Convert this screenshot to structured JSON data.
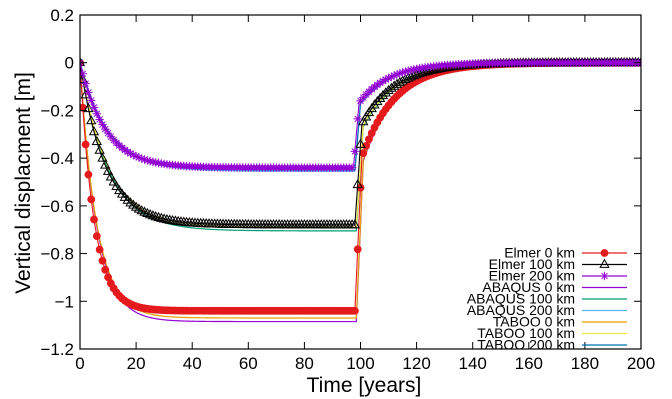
{
  "chart_data": {
    "type": "line",
    "xlabel": "Time [years]",
    "ylabel": "Vertical displacment [m]",
    "xlim": [
      0,
      200
    ],
    "ylim": [
      -1.2,
      0.2
    ],
    "xticks": [
      0,
      20,
      40,
      60,
      80,
      100,
      120,
      140,
      160,
      180,
      200
    ],
    "yticks": [
      -1.2,
      -1,
      -0.8,
      -0.6,
      -0.4,
      -0.2,
      0,
      0.2
    ],
    "xtick_labels": [
      "0",
      "20",
      "40",
      "60",
      "80",
      "100",
      "120",
      "140",
      "160",
      "180",
      "200"
    ],
    "ytick_labels": [
      "−1.2",
      "−1",
      "−0.8",
      "−0.6",
      "−0.4",
      "−0.2",
      "0",
      "0.2"
    ],
    "grid": false,
    "legend_position": "bottom-right",
    "series": [
      {
        "name": "Elmer 0 km",
        "color": "#e41a1c",
        "style": "line+marker",
        "marker": "filled-circle",
        "model": {
          "plateau": -1.04,
          "tau": 5,
          "delay": 98,
          "rise": 2.5,
          "recTau": 12,
          "step": 1
        }
      },
      {
        "name": "Elmer 100 km",
        "color": "#000000",
        "style": "line+marker",
        "marker": "open-triangle",
        "model": {
          "plateau": -0.68,
          "tau": 9,
          "delay": 98,
          "rise": 2.5,
          "recTau": 12,
          "step": 1
        }
      },
      {
        "name": "Elmer 200 km",
        "color": "#9400d3",
        "style": "line+marker",
        "marker": "star",
        "model": {
          "plateau": -0.44,
          "tau": 9,
          "delay": 97.5,
          "rise": 2.0,
          "recTau": 11,
          "step": 1
        }
      },
      {
        "name": "ABAQUS 0 km",
        "color": "#9400d3",
        "style": "line",
        "model": {
          "plateau": -1.085,
          "tau": 6,
          "delay": 98.5,
          "rise": 2.5,
          "recTau": 12
        }
      },
      {
        "name": "ABAQUS 100 km",
        "color": "#009e73",
        "style": "line",
        "model": {
          "plateau": -0.705,
          "tau": 10,
          "delay": 98.5,
          "rise": 2.5,
          "recTau": 12
        }
      },
      {
        "name": "ABAQUS 200 km",
        "color": "#56b4e9",
        "style": "line",
        "model": {
          "plateau": -0.455,
          "tau": 10,
          "delay": 98,
          "rise": 2.0,
          "recTau": 11
        }
      },
      {
        "name": "TABOO 0 km",
        "color": "#e69f00",
        "style": "line",
        "model": {
          "plateau": -1.07,
          "tau": 6,
          "delay": 98.5,
          "rise": 2.5,
          "recTau": 12
        }
      },
      {
        "name": "TABOO 100 km",
        "color": "#f0e442",
        "style": "line",
        "model": {
          "plateau": -0.69,
          "tau": 10,
          "delay": 98.5,
          "rise": 2.5,
          "recTau": 12
        }
      },
      {
        "name": "TABOO 200 km",
        "color": "#0072b2",
        "style": "line",
        "model": {
          "plateau": -0.45,
          "tau": 10,
          "delay": 98,
          "rise": 2.0,
          "recTau": 11
        }
      }
    ]
  }
}
